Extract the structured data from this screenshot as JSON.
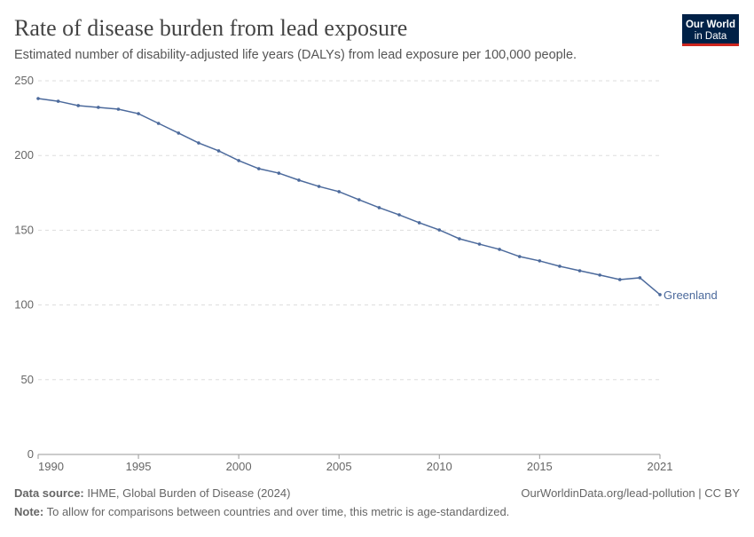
{
  "logo": {
    "line1": "Our World",
    "line2": "in Data"
  },
  "chart_data": {
    "type": "line",
    "title": "Rate of disease burden from lead exposure",
    "subtitle": "Estimated number of disability-adjusted life years (DALYs) from lead exposure per 100,000 people.",
    "x": [
      1990,
      1991,
      1992,
      1993,
      1994,
      1995,
      1996,
      1997,
      1998,
      1999,
      2000,
      2001,
      2002,
      2003,
      2004,
      2005,
      2006,
      2007,
      2008,
      2009,
      2010,
      2011,
      2012,
      2013,
      2014,
      2015,
      2016,
      2017,
      2018,
      2019,
      2020,
      2021
    ],
    "series": [
      {
        "name": "Greenland",
        "color": "#4c6a9c",
        "values": [
          238.1,
          236.3,
          233.4,
          232.2,
          231.0,
          228.0,
          221.5,
          215.0,
          208.4,
          203.1,
          196.6,
          191.2,
          188.2,
          183.5,
          179.3,
          175.8,
          170.4,
          165.1,
          160.3,
          155.0,
          150.2,
          144.3,
          140.7,
          137.2,
          132.4,
          129.5,
          125.9,
          122.9,
          120.0,
          117.0,
          118.2,
          106.9
        ]
      }
    ],
    "xlim": [
      1990,
      2021
    ],
    "xticks": [
      1990,
      1995,
      2000,
      2005,
      2010,
      2015,
      2021
    ],
    "ylim": [
      0,
      250
    ],
    "yticks": [
      0,
      50,
      100,
      150,
      200,
      250
    ],
    "grid": true
  },
  "footer": {
    "source_label": "Data source:",
    "source": "IHME, Global Burden of Disease (2024)",
    "url": "OurWorldinData.org/lead-pollution | CC BY",
    "note_label": "Note:",
    "note": "To allow for comparisons between countries and over time, this metric is age-standardized."
  }
}
